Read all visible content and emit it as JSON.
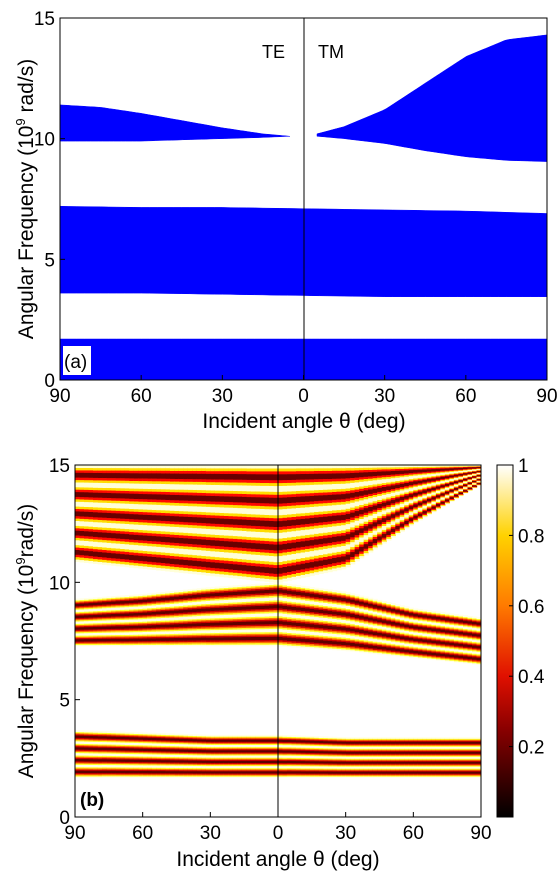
{
  "chart_data": [
    {
      "type": "area",
      "panel_label": "(a)",
      "ylabel_text": "Angular Frequency (10",
      "ylabel_sup": "9",
      "ylabel_end": " rad/s)",
      "xlabel": "Incident angle θ (deg)",
      "xlim": [
        -90,
        90
      ],
      "ylim": [
        0,
        15
      ],
      "xticks": [
        -90,
        -60,
        -30,
        0,
        30,
        60,
        90
      ],
      "xtick_labels": [
        "90",
        "60",
        "30",
        "0",
        "30",
        "60",
        "90"
      ],
      "yticks": [
        0,
        5,
        10,
        15
      ],
      "ytick_labels": [
        "0",
        "5",
        "10",
        "15"
      ],
      "side_labels": {
        "left": "TE",
        "right": "TM"
      },
      "band_color": "#0000ff",
      "series": [
        {
          "x": [
            -90,
            -75,
            -60,
            -45,
            -30,
            -15,
            -5
          ],
          "lower": [
            9.9,
            9.9,
            9.9,
            9.95,
            10.0,
            10.05,
            10.1
          ],
          "upper": [
            11.4,
            11.3,
            11.05,
            10.75,
            10.45,
            10.2,
            10.1
          ]
        },
        {
          "x": [
            5,
            15,
            30,
            45,
            60,
            75,
            90
          ],
          "lower": [
            10.1,
            10.0,
            9.8,
            9.5,
            9.25,
            9.1,
            9.05
          ],
          "upper": [
            10.2,
            10.5,
            11.2,
            12.3,
            13.4,
            14.1,
            14.3
          ]
        },
        {
          "x": [
            -90,
            -60,
            -30,
            0,
            30,
            60,
            90
          ],
          "lower": [
            3.6,
            3.6,
            3.55,
            3.5,
            3.45,
            3.45,
            3.45
          ],
          "upper": [
            7.2,
            7.15,
            7.15,
            7.1,
            7.05,
            7.0,
            6.9
          ]
        },
        {
          "x": [
            -90,
            90
          ],
          "lower": [
            0,
            0
          ],
          "upper": [
            1.7,
            1.7
          ]
        }
      ]
    },
    {
      "type": "heatmap",
      "panel_label": "(b)",
      "ylabel_text": "Angular Frequency (10",
      "ylabel_sup": "9",
      "ylabel_end": "rad/s)",
      "xlabel": "Incident angle θ (deg)",
      "xlim": [
        -90,
        90
      ],
      "ylim": [
        0,
        15
      ],
      "xticks": [
        -90,
        -60,
        -30,
        0,
        30,
        60,
        90
      ],
      "xtick_labels": [
        "90",
        "60",
        "30",
        "0",
        "30",
        "60",
        "90"
      ],
      "yticks": [
        0,
        5,
        10,
        15
      ],
      "ytick_labels": [
        "0",
        "5",
        "10",
        "15"
      ],
      "colorbar": {
        "range": [
          0,
          1
        ],
        "ticks": [
          0.2,
          0.4,
          0.6,
          0.8,
          1
        ],
        "tick_labels": [
          "0.2",
          "0.4",
          "0.6",
          "0.8",
          "1"
        ],
        "colormap": "hot"
      },
      "bands": [
        {
          "x": [
            -90,
            -60,
            -30,
            0,
            30,
            60,
            90
          ],
          "lower": [
            10.9,
            10.6,
            10.3,
            10.0,
            10.6,
            12.5,
            14.2
          ],
          "upper": [
            15,
            15,
            15,
            15,
            15,
            15,
            15
          ],
          "fringes": 5
        },
        {
          "x": [
            -90,
            -60,
            -30,
            0,
            30,
            60,
            90
          ],
          "lower": [
            7.3,
            7.3,
            7.3,
            7.3,
            7.1,
            6.8,
            6.5
          ],
          "upper": [
            9.3,
            9.5,
            9.8,
            10.0,
            9.6,
            8.9,
            8.5
          ],
          "fringes": 4
        },
        {
          "x": [
            -90,
            -60,
            -30,
            0,
            30,
            60,
            90
          ],
          "lower": [
            1.7,
            1.7,
            1.7,
            1.7,
            1.7,
            1.7,
            1.7
          ],
          "upper": [
            3.7,
            3.6,
            3.5,
            3.5,
            3.4,
            3.4,
            3.4
          ],
          "fringes": 4
        }
      ]
    }
  ]
}
